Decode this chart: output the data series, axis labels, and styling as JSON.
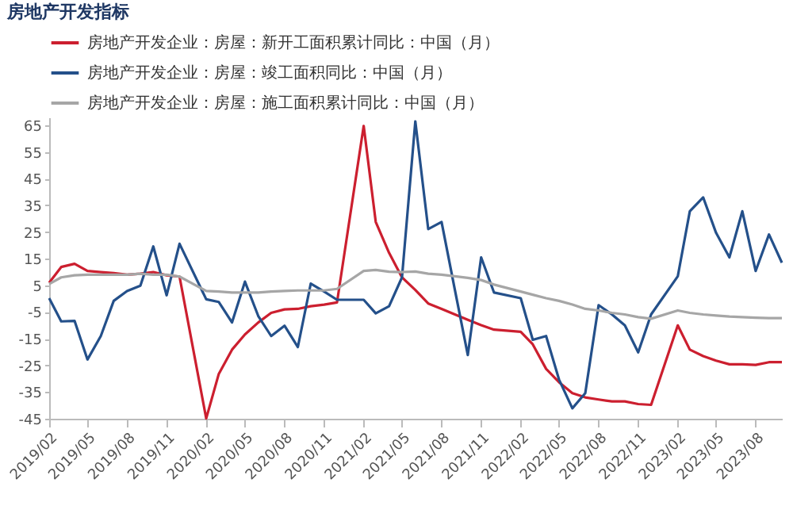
{
  "chart_data": {
    "type": "line",
    "title": "房地产开发指标",
    "legend": "top",
    "x": [
      "2019-02",
      "2019-03",
      "2019-04",
      "2019-05",
      "2019-06",
      "2019-07",
      "2019-08",
      "2019-09",
      "2019-10",
      "2019-11",
      "2019-12",
      "2020-02",
      "2020-03",
      "2020-04",
      "2020-05",
      "2020-06",
      "2020-07",
      "2020-08",
      "2020-09",
      "2020-10",
      "2020-11",
      "2020-12",
      "2021-02",
      "2021-03",
      "2021-04",
      "2021-05",
      "2021-06",
      "2021-07",
      "2021-08",
      "2021-09",
      "2021-10",
      "2021-11",
      "2021-12",
      "2022-02",
      "2022-03",
      "2022-04",
      "2022-05",
      "2022-06",
      "2022-07",
      "2022-08",
      "2022-09",
      "2022-10",
      "2022-11",
      "2022-12",
      "2023-02",
      "2023-03",
      "2023-04",
      "2023-05",
      "2023-06",
      "2023-07",
      "2023-08",
      "2023-09",
      "2023-10"
    ],
    "xlim": [
      "2019-02",
      "2023-10"
    ],
    "xticks": [
      {
        "value": "2019-02",
        "label": "2019/02"
      },
      {
        "value": "2019-05",
        "label": "2019/05"
      },
      {
        "value": "2019-08",
        "label": "2019/08"
      },
      {
        "value": "2019-11",
        "label": "2019/11"
      },
      {
        "value": "2020-02",
        "label": "2020/02"
      },
      {
        "value": "2020-05",
        "label": "2020/05"
      },
      {
        "value": "2020-08",
        "label": "2020/08"
      },
      {
        "value": "2020-11",
        "label": "2020/11"
      },
      {
        "value": "2021-02",
        "label": "2021/02"
      },
      {
        "value": "2021-05",
        "label": "2021/05"
      },
      {
        "value": "2021-08",
        "label": "2021/08"
      },
      {
        "value": "2021-11",
        "label": "2021/11"
      },
      {
        "value": "2022-02",
        "label": "2022/02"
      },
      {
        "value": "2022-05",
        "label": "2022/05"
      },
      {
        "value": "2022-08",
        "label": "2022/08"
      },
      {
        "value": "2022-11",
        "label": "2022/11"
      },
      {
        "value": "2023-02",
        "label": "2023/02"
      },
      {
        "value": "2023-05",
        "label": "2023/05"
      },
      {
        "value": "2023-08",
        "label": "2023/08"
      }
    ],
    "ylim": [
      -45,
      68
    ],
    "yticks": [
      -45,
      -35,
      -25,
      -15,
      -5,
      5,
      15,
      25,
      35,
      45,
      55,
      65
    ],
    "series": [
      {
        "name": "房地产开发企业：房屋：新开工面积累计同比：中国（月）",
        "color": "#cc1f2f",
        "values": [
          6,
          11.9,
          13.1,
          10.4,
          10,
          9.6,
          9,
          9.4,
          10,
          8.8,
          8.3,
          -44.9,
          -28.3,
          -19.1,
          -13.4,
          -8.9,
          -5.3,
          -4,
          -3.8,
          -2.8,
          -2.2,
          -1.4,
          64.8,
          28.8,
          17.2,
          8,
          3.3,
          -1.8,
          -3.8,
          -5.9,
          -7.9,
          -9.9,
          -11.6,
          -12.4,
          -17.1,
          -26.3,
          -31.3,
          -35.4,
          -37,
          -37.8,
          -38.5,
          -38.5,
          -39.5,
          -39.8,
          -10,
          -19.1,
          -21.5,
          -23.2,
          -24.6,
          -24.6,
          -24.8,
          -23.8,
          -23.8
        ]
      },
      {
        "name": "房地产开发企业：房屋：竣工面积同比：中国（月）",
        "color": "#24508a",
        "values": [
          0.2,
          -8.5,
          -8.3,
          -22.8,
          -14,
          -0.8,
          2.9,
          4.9,
          19.6,
          1.3,
          20.6,
          -0.2,
          -1.2,
          -8.9,
          6.4,
          -6.5,
          -14,
          -10.1,
          -18.1,
          5.7,
          2.7,
          -0.4,
          -0.4,
          -5.5,
          -2.8,
          8,
          66.5,
          26.1,
          28.8,
          3.3,
          -21.1,
          15.5,
          2.3,
          0.2,
          -15.4,
          -14,
          -30.3,
          -41.1,
          -35.4,
          -2.4,
          -5.9,
          -10,
          -20.1,
          -5.9,
          8.4,
          32.8,
          38,
          24.7,
          15.5,
          32.8,
          10.4,
          24.1,
          13.5
        ]
      },
      {
        "name": "房地产开发企业：房屋：施工面积累计同比：中国（月）",
        "color": "#a6a6a6",
        "values": [
          5.5,
          8,
          8.8,
          9,
          9,
          9,
          9,
          9.4,
          9,
          9,
          8.3,
          2.9,
          2.7,
          2.3,
          2.3,
          2.3,
          2.7,
          2.9,
          3.1,
          3.1,
          3.1,
          3.7,
          10.4,
          10.8,
          10.1,
          10,
          10.2,
          9.4,
          9,
          8.4,
          7.8,
          7,
          5.3,
          2.7,
          1.5,
          0.2,
          -0.8,
          -2.2,
          -3.8,
          -4.4,
          -5.3,
          -5.9,
          -6.9,
          -7.5,
          -4.4,
          -5.3,
          -5.9,
          -6.3,
          -6.7,
          -6.9,
          -7.1,
          -7.3,
          -7.3
        ]
      }
    ]
  }
}
